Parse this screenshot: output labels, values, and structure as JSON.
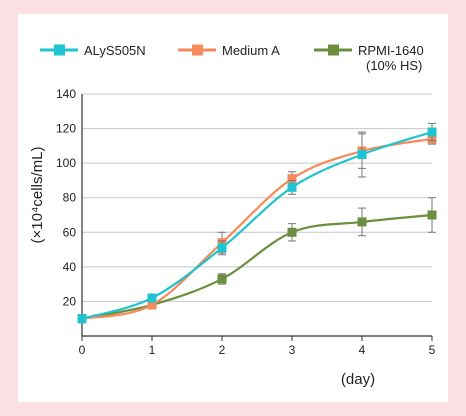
{
  "colors": {
    "background": "#fbdfe3",
    "card": "#ffffff",
    "axis": "#333333",
    "grid": "#c8c8c8",
    "error": "#777777"
  },
  "chart_data": {
    "type": "line",
    "xlabel": "(day)",
    "ylabel": "(×10⁴cells/mL)",
    "x": [
      0,
      1,
      2,
      3,
      4,
      5
    ],
    "xlim": [
      0,
      5
    ],
    "ylim": [
      0,
      140
    ],
    "yticks": [
      20,
      40,
      60,
      80,
      100,
      120,
      140
    ],
    "xticks": [
      0,
      1,
      2,
      3,
      4,
      5
    ],
    "grid": true,
    "legend": "top",
    "series": [
      {
        "name": "ALyS505N",
        "color": "#1fc3d1",
        "marker": "square",
        "values": [
          10,
          22,
          51,
          86,
          105,
          118
        ],
        "errors": [
          0,
          0,
          4,
          4,
          13,
          5
        ]
      },
      {
        "name": "Medium A",
        "color": "#f58a5a",
        "marker": "square",
        "values": [
          10,
          18,
          54,
          91,
          107,
          114
        ],
        "errors": [
          0,
          0,
          6,
          4,
          10,
          3
        ]
      },
      {
        "name": "RPMI-1640",
        "name_sub": "(10% HS)",
        "color": "#6b8f3e",
        "marker": "square",
        "values": [
          10,
          18,
          33,
          60,
          66,
          70
        ],
        "errors": [
          0,
          0,
          3,
          5,
          8,
          10
        ]
      }
    ]
  }
}
